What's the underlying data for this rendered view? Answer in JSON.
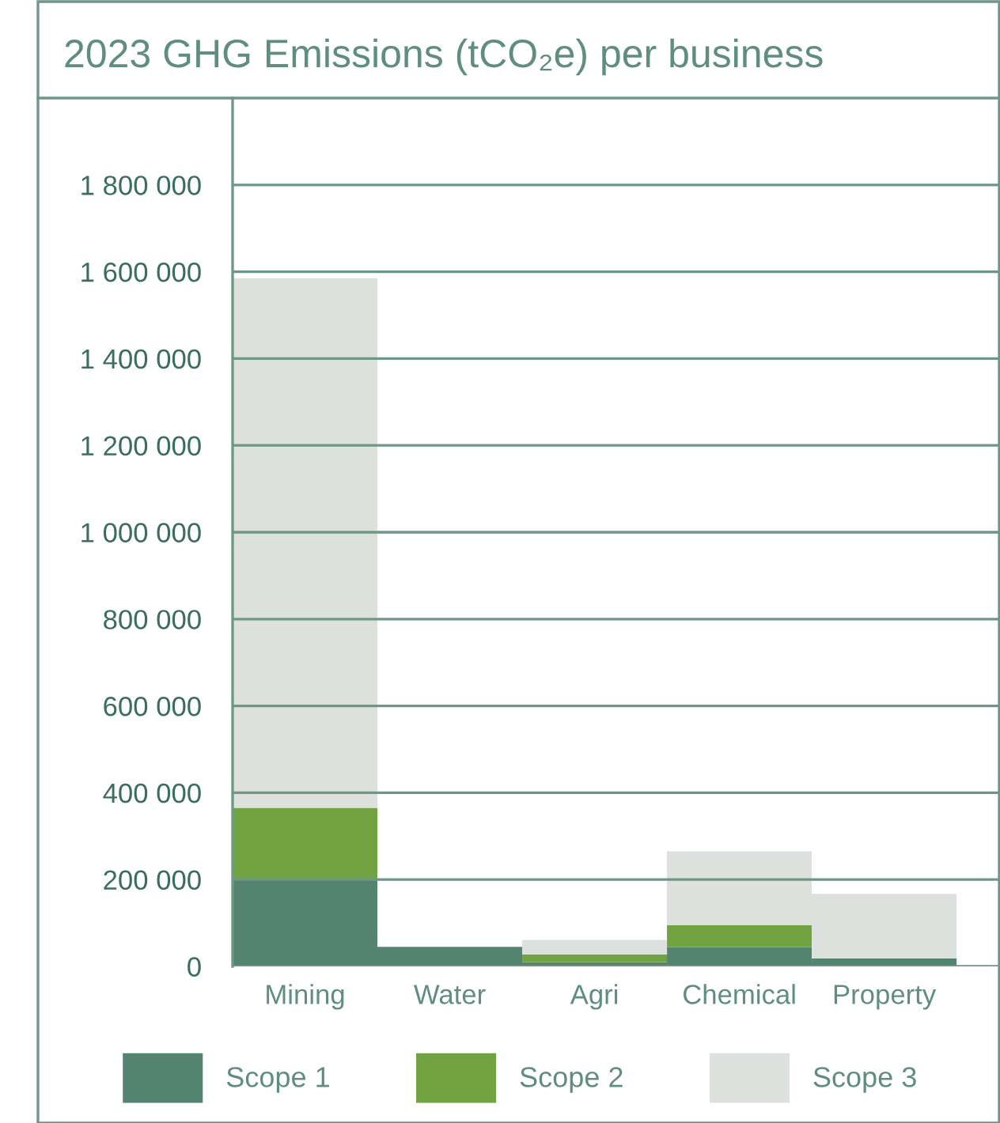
{
  "chart_data": {
    "type": "bar",
    "title": "2023 GHG Emissions (tCO₂e) per business",
    "categories": [
      "Mining",
      "Water",
      "Agri",
      "Chemical",
      "Property"
    ],
    "stacked": true,
    "series": [
      {
        "name": "Scope 1",
        "color": "#548370",
        "values": [
          200000,
          45000,
          10000,
          44000,
          18000
        ]
      },
      {
        "name": "Scope 2",
        "color": "#72a342",
        "values": [
          165000,
          null,
          18000,
          51000,
          null
        ]
      },
      {
        "name": "Scope 3",
        "color": "#dce1dd",
        "values": [
          1220000,
          null,
          33000,
          170000,
          149000
        ]
      }
    ],
    "ylim": [
      0,
      2000000
    ],
    "yticks": [
      {
        "value": 0,
        "label": "0"
      },
      {
        "value": 200000,
        "label": "200 000"
      },
      {
        "value": 400000,
        "label": "400 000"
      },
      {
        "value": 600000,
        "label": "600 000"
      },
      {
        "value": 800000,
        "label": "800 000"
      },
      {
        "value": 1000000,
        "label": "1 000 000"
      },
      {
        "value": 1200000,
        "label": "1 200 000"
      },
      {
        "value": 1400000,
        "label": "1 400 000"
      },
      {
        "value": 1600000,
        "label": "1 600 000"
      },
      {
        "value": 1800000,
        "label": "1 800 000"
      }
    ],
    "grid": "y",
    "legend": "bottom"
  }
}
